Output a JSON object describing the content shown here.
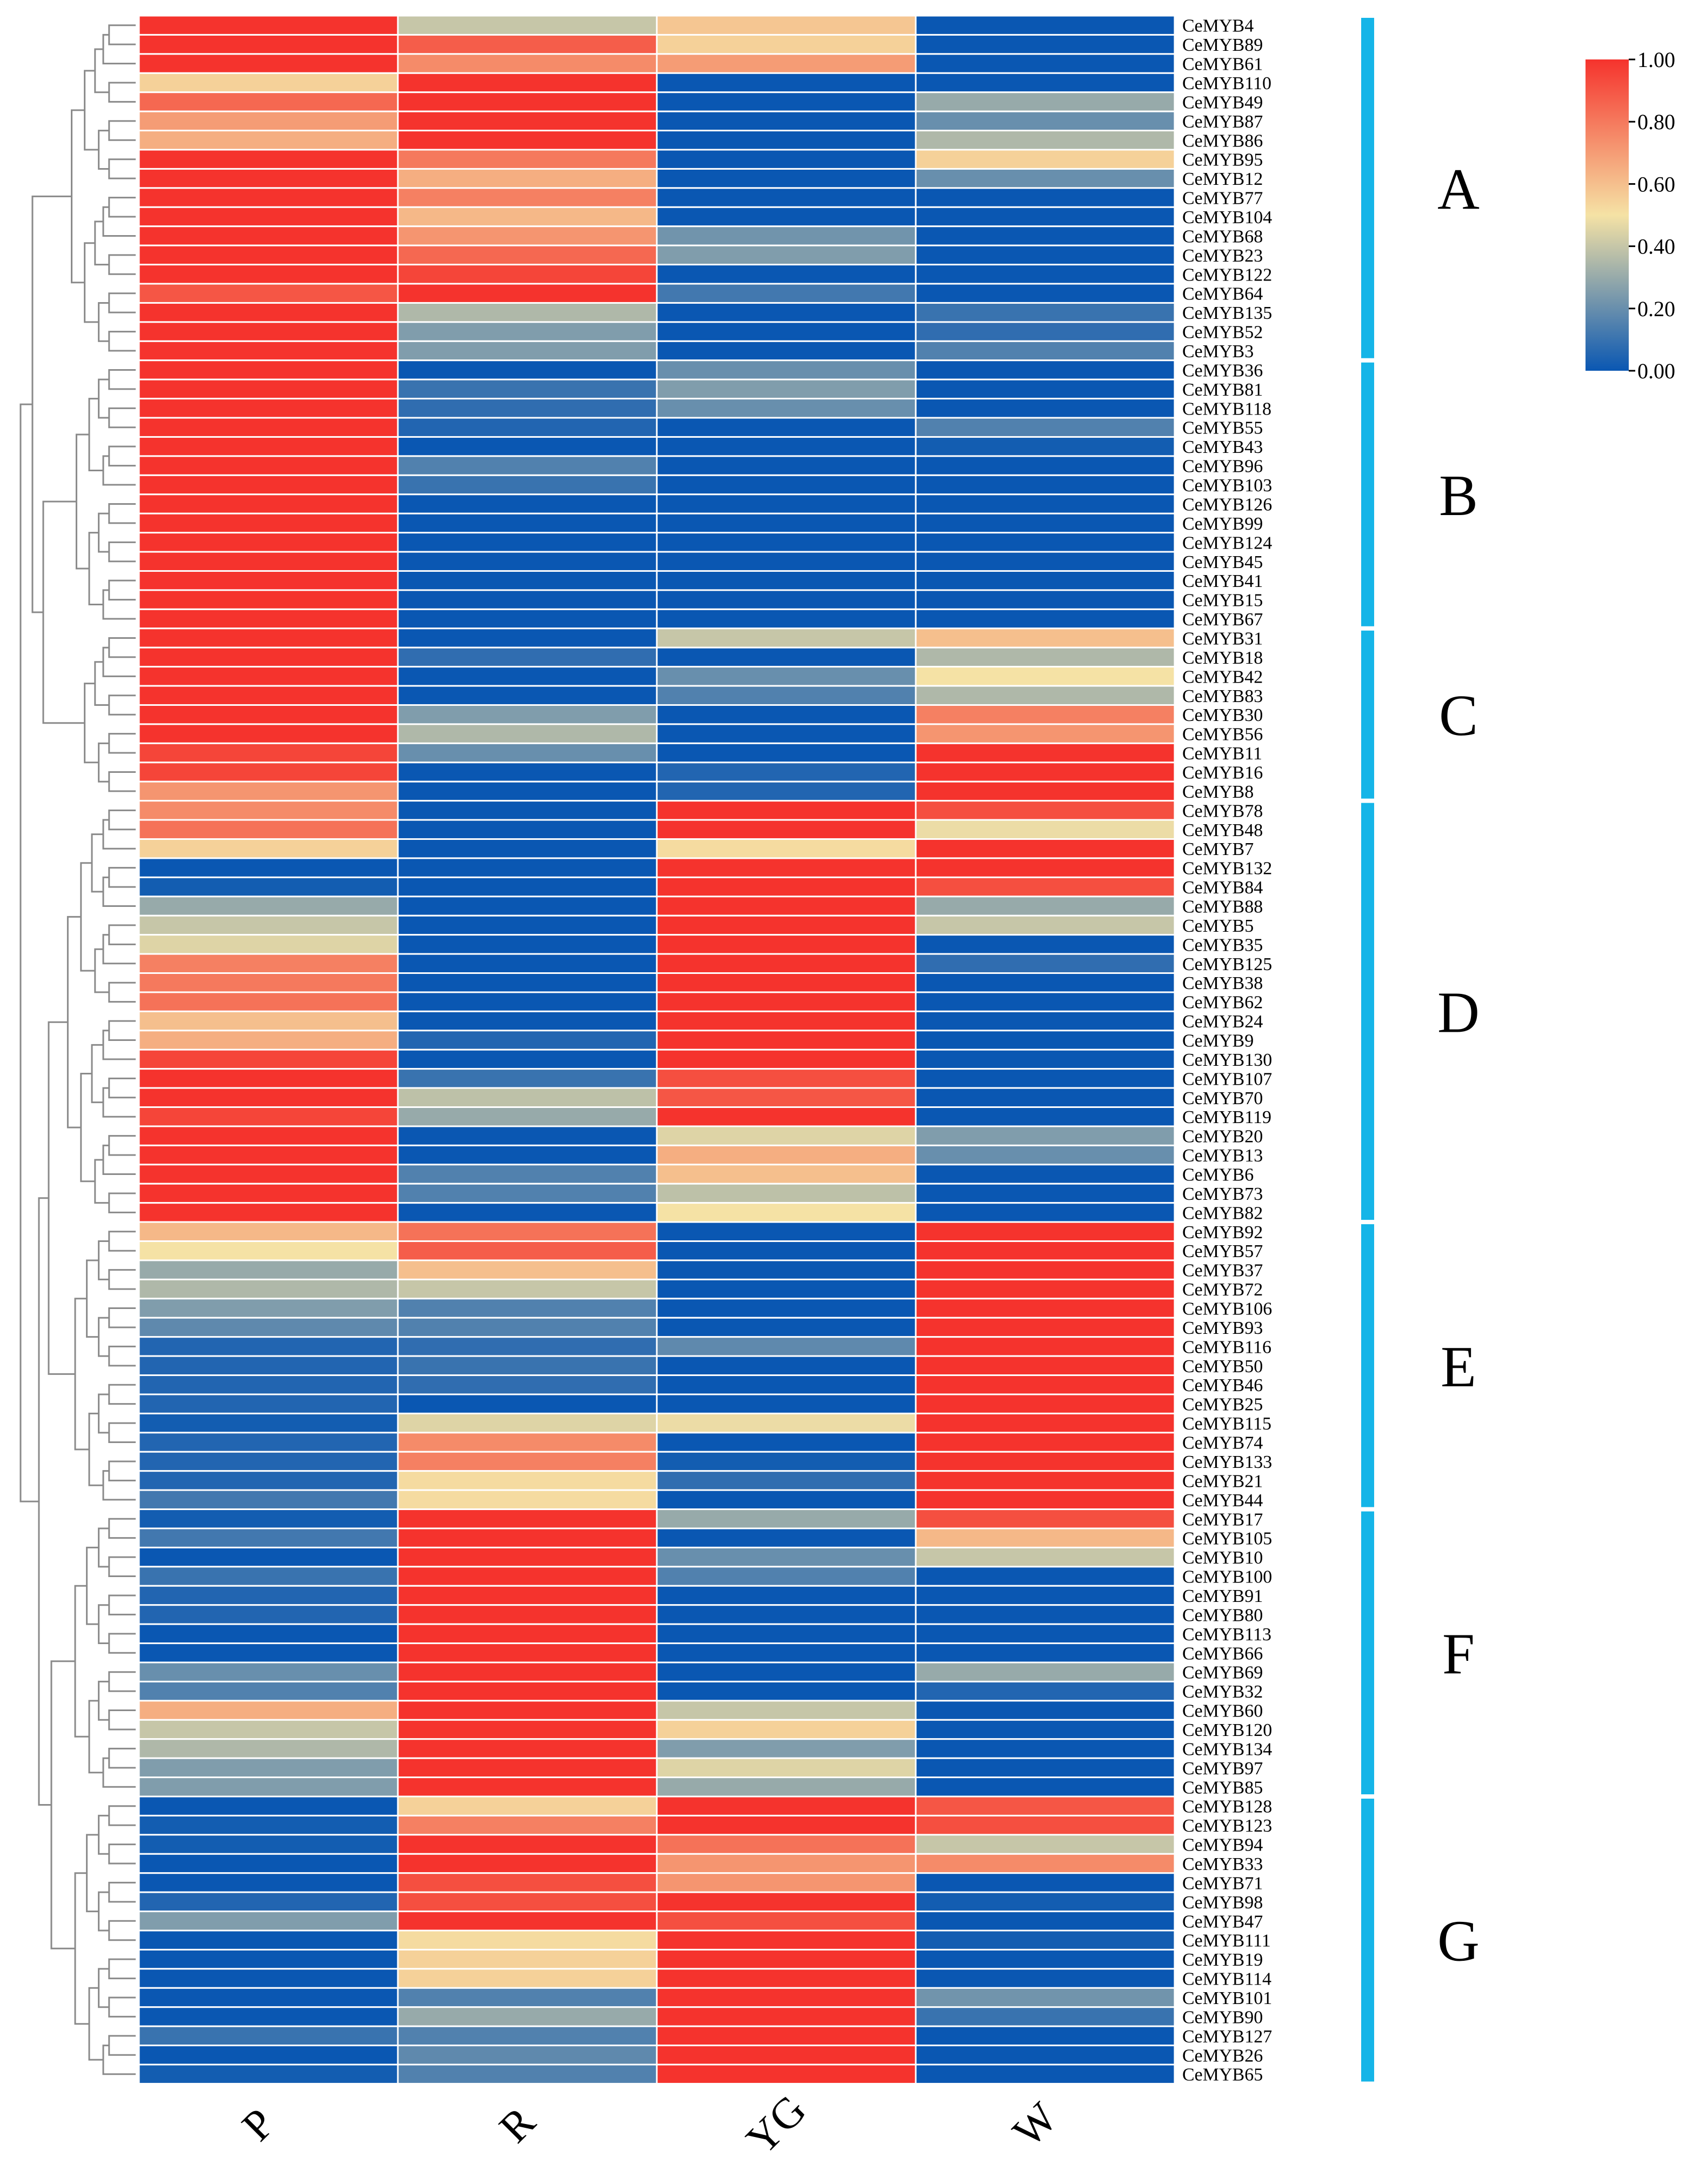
{
  "chart_data": {
    "type": "heatmap",
    "title": "",
    "columns": [
      "P",
      "R",
      "YG",
      "W"
    ],
    "rows": [
      "CeMYB4",
      "CeMYB89",
      "CeMYB61",
      "CeMYB110",
      "CeMYB49",
      "CeMYB87",
      "CeMYB86",
      "CeMYB95",
      "CeMYB12",
      "CeMYB77",
      "CeMYB104",
      "CeMYB68",
      "CeMYB23",
      "CeMYB122",
      "CeMYB64",
      "CeMYB135",
      "CeMYB52",
      "CeMYB3",
      "CeMYB36",
      "CeMYB81",
      "CeMYB118",
      "CeMYB55",
      "CeMYB43",
      "CeMYB96",
      "CeMYB103",
      "CeMYB126",
      "CeMYB99",
      "CeMYB124",
      "CeMYB45",
      "CeMYB41",
      "CeMYB15",
      "CeMYB67",
      "CeMYB31",
      "CeMYB18",
      "CeMYB42",
      "CeMYB83",
      "CeMYB30",
      "CeMYB56",
      "CeMYB11",
      "CeMYB16",
      "CeMYB8",
      "CeMYB78",
      "CeMYB48",
      "CeMYB7",
      "CeMYB132",
      "CeMYB84",
      "CeMYB88",
      "CeMYB5",
      "CeMYB35",
      "CeMYB125",
      "CeMYB38",
      "CeMYB62",
      "CeMYB24",
      "CeMYB9",
      "CeMYB130",
      "CeMYB107",
      "CeMYB70",
      "CeMYB119",
      "CeMYB20",
      "CeMYB13",
      "CeMYB6",
      "CeMYB73",
      "CeMYB82",
      "CeMYB92",
      "CeMYB57",
      "CeMYB37",
      "CeMYB72",
      "CeMYB106",
      "CeMYB93",
      "CeMYB116",
      "CeMYB50",
      "CeMYB46",
      "CeMYB25",
      "CeMYB115",
      "CeMYB74",
      "CeMYB133",
      "CeMYB21",
      "CeMYB44",
      "CeMYB17",
      "CeMYB105",
      "CeMYB10",
      "CeMYB100",
      "CeMYB91",
      "CeMYB80",
      "CeMYB113",
      "CeMYB66",
      "CeMYB69",
      "CeMYB32",
      "CeMYB60",
      "CeMYB120",
      "CeMYB134",
      "CeMYB97",
      "CeMYB85",
      "CeMYB128",
      "CeMYB123",
      "CeMYB94",
      "CeMYB33",
      "CeMYB71",
      "CeMYB98",
      "CeMYB47",
      "CeMYB111",
      "CeMYB19",
      "CeMYB114",
      "CeMYB101",
      "CeMYB90",
      "CeMYB127",
      "CeMYB26",
      "CeMYB65"
    ],
    "values": [
      [
        1.0,
        0.4,
        0.58,
        0.0
      ],
      [
        1.0,
        0.88,
        0.55,
        0.0
      ],
      [
        1.0,
        0.75,
        0.7,
        0.0
      ],
      [
        0.55,
        1.0,
        0.0,
        0.0
      ],
      [
        0.85,
        1.0,
        0.0,
        0.3
      ],
      [
        0.7,
        1.0,
        0.0,
        0.2
      ],
      [
        0.65,
        1.0,
        0.0,
        0.35
      ],
      [
        1.0,
        0.8,
        0.0,
        0.55
      ],
      [
        1.0,
        0.65,
        0.0,
        0.2
      ],
      [
        1.0,
        0.78,
        0.0,
        0.0
      ],
      [
        1.0,
        0.62,
        0.0,
        0.0
      ],
      [
        1.0,
        0.72,
        0.22,
        0.0
      ],
      [
        1.0,
        0.85,
        0.25,
        0.0
      ],
      [
        1.0,
        0.95,
        0.0,
        0.0
      ],
      [
        0.9,
        1.0,
        0.12,
        0.0
      ],
      [
        1.0,
        0.35,
        0.0,
        0.1
      ],
      [
        1.0,
        0.25,
        0.0,
        0.08
      ],
      [
        1.0,
        0.25,
        0.0,
        0.15
      ],
      [
        1.0,
        0.0,
        0.2,
        0.0
      ],
      [
        1.0,
        0.1,
        0.25,
        0.0
      ],
      [
        1.0,
        0.08,
        0.2,
        0.0
      ],
      [
        1.0,
        0.05,
        0.0,
        0.15
      ],
      [
        1.0,
        0.0,
        0.0,
        0.02
      ],
      [
        1.0,
        0.15,
        0.0,
        0.0
      ],
      [
        1.0,
        0.1,
        0.0,
        0.0
      ],
      [
        1.0,
        0.0,
        0.0,
        0.0
      ],
      [
        1.0,
        0.0,
        0.0,
        0.0
      ],
      [
        1.0,
        0.0,
        0.0,
        0.0
      ],
      [
        1.0,
        0.0,
        0.0,
        0.0
      ],
      [
        1.0,
        0.0,
        0.0,
        0.0
      ],
      [
        1.0,
        0.0,
        0.0,
        0.0
      ],
      [
        1.0,
        0.0,
        0.0,
        0.0
      ],
      [
        1.0,
        0.0,
        0.4,
        0.6
      ],
      [
        1.0,
        0.08,
        0.0,
        0.35
      ],
      [
        1.0,
        0.0,
        0.2,
        0.5
      ],
      [
        1.0,
        0.0,
        0.15,
        0.35
      ],
      [
        1.0,
        0.25,
        0.0,
        0.78
      ],
      [
        1.0,
        0.35,
        0.0,
        0.72
      ],
      [
        0.95,
        0.2,
        0.0,
        1.0
      ],
      [
        0.95,
        0.0,
        0.05,
        1.0
      ],
      [
        0.72,
        0.0,
        0.05,
        1.0
      ],
      [
        0.75,
        0.0,
        1.0,
        0.92
      ],
      [
        0.82,
        0.0,
        1.0,
        0.48
      ],
      [
        0.55,
        0.0,
        0.52,
        1.0
      ],
      [
        0.0,
        0.0,
        1.0,
        1.0
      ],
      [
        0.02,
        0.0,
        1.0,
        0.92
      ],
      [
        0.3,
        0.0,
        1.0,
        0.3
      ],
      [
        0.4,
        0.0,
        1.0,
        0.4
      ],
      [
        0.45,
        0.0,
        1.0,
        0.0
      ],
      [
        0.78,
        0.0,
        1.0,
        0.08
      ],
      [
        0.8,
        0.0,
        1.0,
        0.0
      ],
      [
        0.82,
        0.0,
        1.0,
        0.0
      ],
      [
        0.6,
        0.0,
        1.0,
        0.0
      ],
      [
        0.65,
        0.05,
        1.0,
        0.0
      ],
      [
        0.95,
        0.0,
        1.0,
        0.0
      ],
      [
        1.0,
        0.1,
        0.92,
        0.0
      ],
      [
        1.0,
        0.38,
        0.9,
        0.0
      ],
      [
        0.95,
        0.3,
        1.0,
        0.0
      ],
      [
        1.0,
        0.0,
        0.45,
        0.25
      ],
      [
        1.0,
        0.0,
        0.65,
        0.2
      ],
      [
        1.0,
        0.15,
        0.6,
        0.0
      ],
      [
        1.0,
        0.15,
        0.38,
        0.0
      ],
      [
        1.0,
        0.0,
        0.5,
        0.0
      ],
      [
        0.62,
        0.82,
        0.0,
        1.0
      ],
      [
        0.5,
        0.88,
        0.0,
        1.0
      ],
      [
        0.3,
        0.6,
        0.0,
        1.0
      ],
      [
        0.35,
        0.4,
        0.0,
        1.0
      ],
      [
        0.25,
        0.15,
        0.0,
        1.0
      ],
      [
        0.18,
        0.15,
        0.0,
        1.0
      ],
      [
        0.05,
        0.08,
        0.18,
        1.0
      ],
      [
        0.05,
        0.1,
        0.0,
        1.0
      ],
      [
        0.05,
        0.08,
        0.0,
        1.0
      ],
      [
        0.05,
        0.0,
        0.0,
        1.0
      ],
      [
        0.02,
        0.45,
        0.48,
        1.0
      ],
      [
        0.05,
        0.75,
        0.0,
        1.0
      ],
      [
        0.05,
        0.78,
        0.02,
        1.0
      ],
      [
        0.05,
        0.52,
        0.08,
        1.0
      ],
      [
        0.12,
        0.52,
        0.0,
        1.0
      ],
      [
        0.02,
        1.0,
        0.3,
        0.92
      ],
      [
        0.12,
        1.0,
        0.0,
        0.62
      ],
      [
        0.0,
        1.0,
        0.2,
        0.4
      ],
      [
        0.1,
        1.0,
        0.15,
        0.0
      ],
      [
        0.05,
        1.0,
        0.0,
        0.0
      ],
      [
        0.05,
        1.0,
        0.0,
        0.0
      ],
      [
        0.0,
        1.0,
        0.0,
        0.0
      ],
      [
        0.0,
        1.0,
        0.0,
        0.0
      ],
      [
        0.2,
        1.0,
        0.0,
        0.3
      ],
      [
        0.15,
        1.0,
        0.0,
        0.05
      ],
      [
        0.65,
        1.0,
        0.4,
        0.0
      ],
      [
        0.4,
        1.0,
        0.55,
        0.0
      ],
      [
        0.35,
        1.0,
        0.25,
        0.0
      ],
      [
        0.25,
        1.0,
        0.45,
        0.0
      ],
      [
        0.25,
        1.0,
        0.3,
        0.0
      ],
      [
        0.0,
        0.55,
        1.0,
        0.9
      ],
      [
        0.02,
        0.78,
        1.0,
        0.92
      ],
      [
        0.02,
        1.0,
        0.82,
        0.4
      ],
      [
        0.0,
        1.0,
        0.72,
        0.75
      ],
      [
        0.0,
        0.92,
        0.72,
        0.0
      ],
      [
        0.05,
        0.92,
        1.0,
        0.02
      ],
      [
        0.25,
        1.0,
        0.92,
        0.0
      ],
      [
        0.0,
        0.52,
        1.0,
        0.02
      ],
      [
        0.0,
        0.55,
        1.0,
        0.0
      ],
      [
        0.0,
        0.55,
        1.0,
        0.0
      ],
      [
        0.0,
        0.15,
        1.0,
        0.22
      ],
      [
        0.0,
        0.3,
        1.0,
        0.1
      ],
      [
        0.1,
        0.15,
        1.0,
        0.0
      ],
      [
        0.0,
        0.18,
        1.0,
        0.0
      ],
      [
        0.02,
        0.15,
        1.0,
        0.0
      ]
    ],
    "groups": [
      {
        "label": "A",
        "start": 0,
        "end": 17
      },
      {
        "label": "B",
        "start": 18,
        "end": 31
      },
      {
        "label": "C",
        "start": 32,
        "end": 40
      },
      {
        "label": "D",
        "start": 41,
        "end": 62
      },
      {
        "label": "E",
        "start": 63,
        "end": 77
      },
      {
        "label": "F",
        "start": 78,
        "end": 92
      },
      {
        "label": "G",
        "start": 93,
        "end": 107
      }
    ],
    "colorbar": {
      "range": [
        0,
        1
      ],
      "ticks": [
        "0.00",
        "0.20",
        "0.40",
        "0.60",
        "0.80",
        "1.00"
      ],
      "colors": [
        "#0a57b2",
        "#f5e2a5",
        "#f5332d"
      ]
    },
    "group_bar_color": "#15b5e8"
  }
}
